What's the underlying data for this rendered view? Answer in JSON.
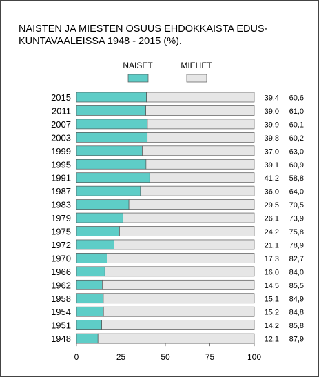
{
  "chart_data": {
    "type": "bar",
    "stacked": true,
    "orientation": "horizontal",
    "title_lines": [
      "NAISTEN JA MIESTEN OSUUS EHDOKKAISTA EDUS-",
      "KUNTAVAALEISSA 1948 - 2015 (%)."
    ],
    "categories": [
      "2015",
      "2011",
      "2007",
      "2003",
      "1999",
      "1995",
      "1991",
      "1987",
      "1983",
      "1979",
      "1975",
      "1972",
      "1970",
      "1966",
      "1962",
      "1958",
      "1954",
      "1951",
      "1948"
    ],
    "series": [
      {
        "name": "NAISET",
        "color": "#5ecdc7",
        "values": [
          39.4,
          39.0,
          39.9,
          39.8,
          37.0,
          39.1,
          41.2,
          36.0,
          29.5,
          26.1,
          24.2,
          21.1,
          17.3,
          16.0,
          14.5,
          15.1,
          15.2,
          14.2,
          12.1
        ],
        "labels": [
          "39,4",
          "39,0",
          "39,9",
          "39,8",
          "37,0",
          "39,1",
          "41,2",
          "36,0",
          "29,5",
          "26,1",
          "24,2",
          "21,1",
          "17,3",
          "16,0",
          "14,5",
          "15,1",
          "15,2",
          "14,2",
          "12,1"
        ]
      },
      {
        "name": "MIEHET",
        "color": "#e6e6e6",
        "values": [
          60.6,
          61.0,
          60.1,
          60.2,
          63.0,
          60.9,
          58.8,
          64.0,
          70.5,
          73.9,
          75.8,
          78.9,
          82.7,
          84.0,
          85.5,
          84.9,
          84.8,
          85.8,
          87.9
        ],
        "labels": [
          "60,6",
          "61,0",
          "60,1",
          "60,2",
          "63,0",
          "60,9",
          "58,8",
          "64,0",
          "70,5",
          "73,9",
          "75,8",
          "78,9",
          "82,7",
          "84,0",
          "85,5",
          "84,9",
          "84,8",
          "85,8",
          "87,9"
        ]
      }
    ],
    "xlim": [
      0,
      100
    ],
    "xticks": [
      0,
      25,
      50,
      75,
      100
    ],
    "legend_position": "top"
  }
}
